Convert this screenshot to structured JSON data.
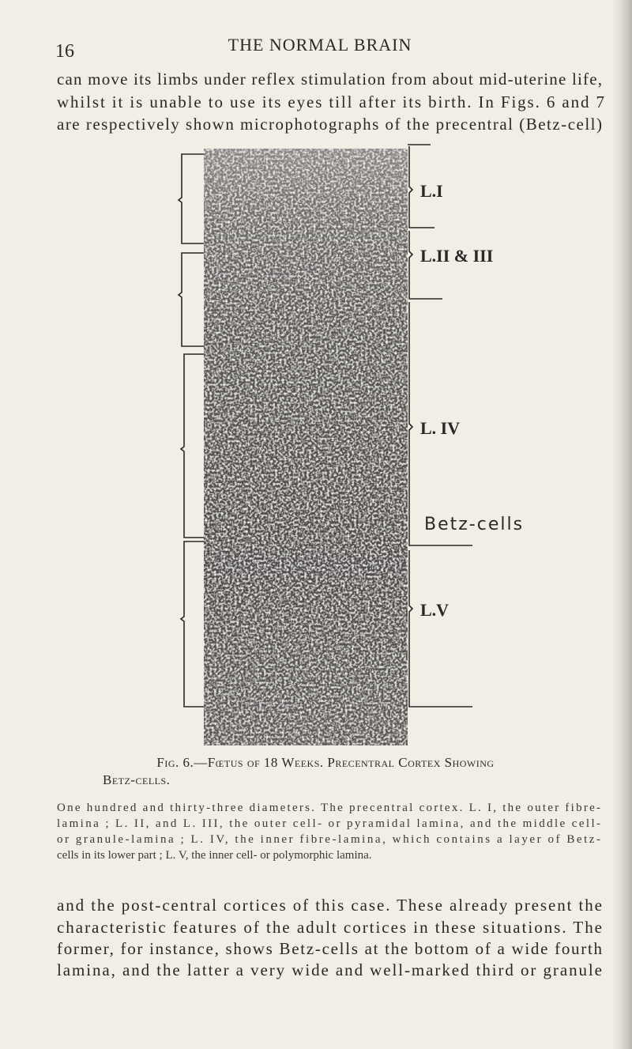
{
  "header": {
    "page_number": "16",
    "title": "THE NORMAL BRAIN"
  },
  "paragraph_top": {
    "lines": [
      "can move its limbs under reflex stimulation from about mid-uterine life,",
      "whilst it is unable to use its eyes till after its birth.  In Figs. 6 and 7",
      "are respectively shown microphotographs of the precentral (Betz-cell)"
    ]
  },
  "figure": {
    "labels": {
      "layer_1": "L.I",
      "layer_2_3": "L.II & III",
      "layer_4": "L. IV",
      "betz": "Betz-cells",
      "layer_5": "L.V"
    },
    "caption_title": [
      "Fig. 6.—Fœtus of 18 Weeks. Precentral Cortex Showing",
      "Betz-cells."
    ],
    "caption_body": [
      "One hundred and thirty-three diameters. The precentral cortex. L. I, the outer fibre-",
      "lamina ; L. II, and L. III, the outer cell- or pyramidal lamina, and the middle cell-",
      "or granule-lamina ; L. IV, the inner fibre-lamina, which contains a layer of Betz-",
      "cells in its lower part ; L. V, the inner cell- or polymorphic lamina."
    ]
  },
  "paragraph_bottom": {
    "lines": [
      "and the post-central cortices of this case.  These already present the",
      "characteristic features of the adult cortices in these situations.  The",
      "former, for instance, shows Betz-cells at the bottom of a wide fourth",
      "lamina, and the latter a very wide and well-marked third or granule"
    ]
  }
}
